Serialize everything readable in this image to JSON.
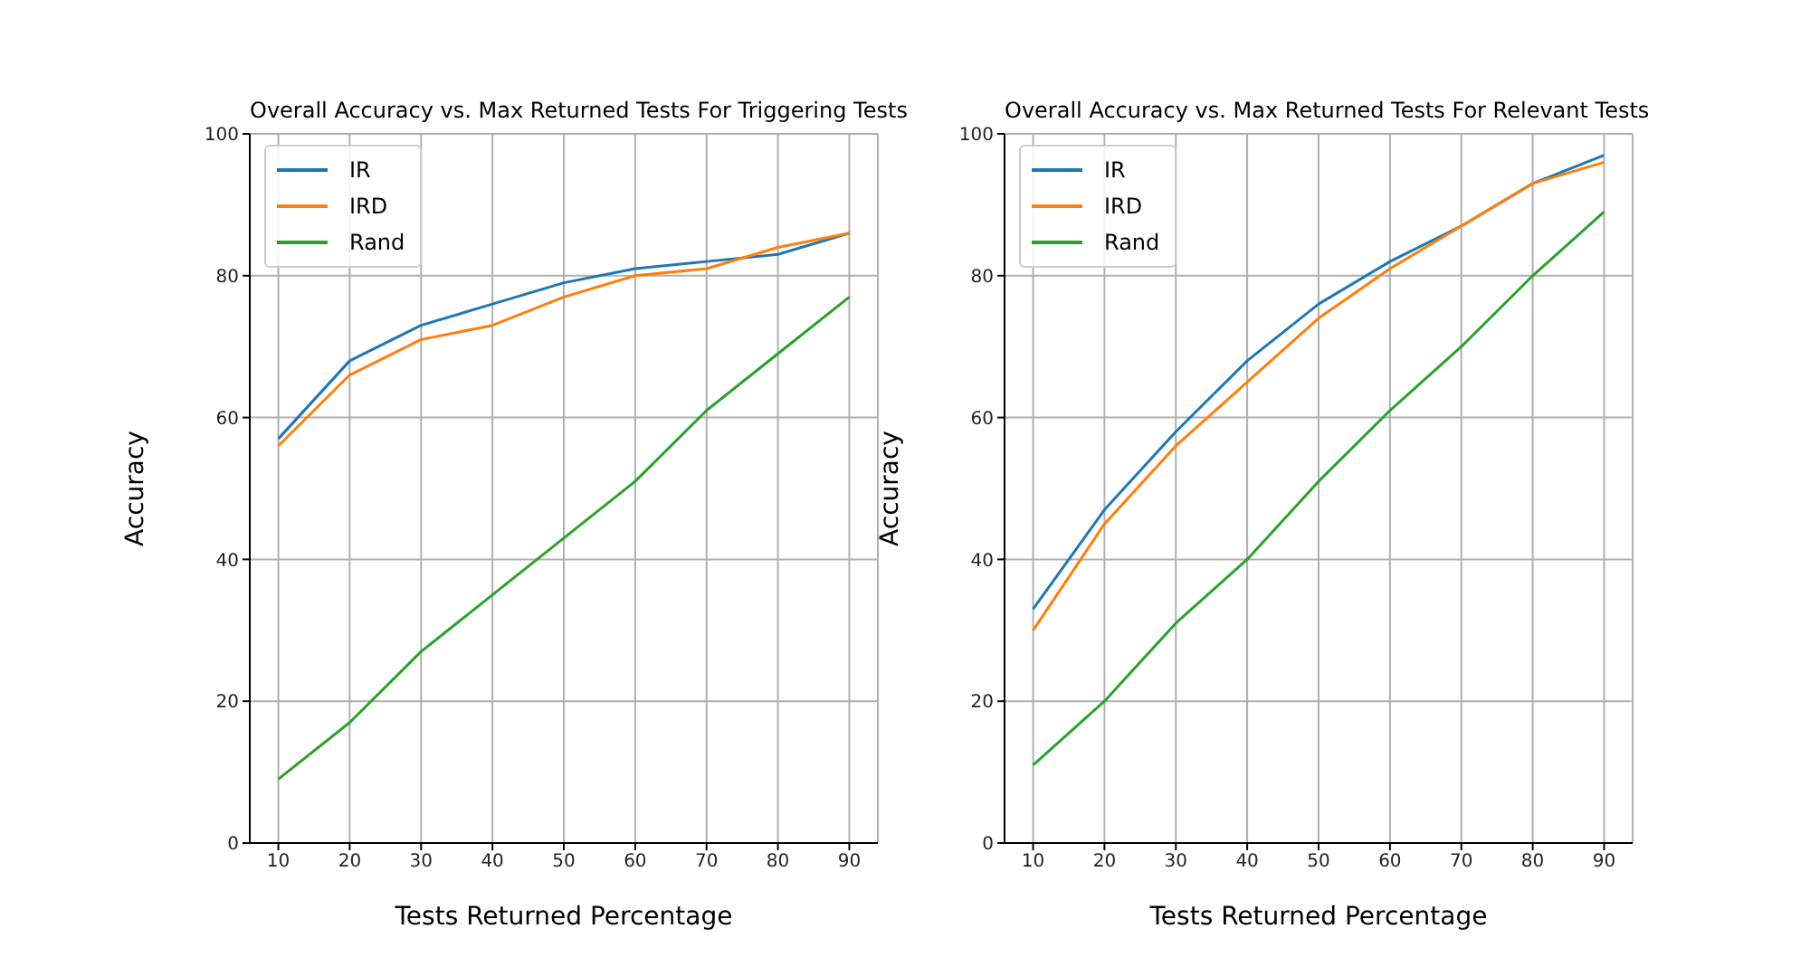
{
  "chart_data": [
    {
      "type": "line",
      "title": "Overall Accuracy vs. Max Returned Tests For Triggering Tests",
      "xlabel": "Tests Returned Percentage",
      "ylabel": "Accuracy",
      "x": [
        10,
        20,
        30,
        40,
        50,
        60,
        70,
        80,
        90
      ],
      "series": [
        {
          "name": "IR",
          "color": "#1f77b4",
          "values": [
            57,
            68,
            73,
            76,
            79,
            81,
            82,
            83,
            86
          ]
        },
        {
          "name": "IRD",
          "color": "#ff7f0e",
          "values": [
            56,
            66,
            71,
            73,
            77,
            80,
            81,
            84,
            86
          ]
        },
        {
          "name": "Rand",
          "color": "#2ca02c",
          "values": [
            9,
            17,
            27,
            35,
            43,
            51,
            61,
            69,
            77
          ]
        }
      ],
      "xlim": [
        6,
        94
      ],
      "xticks": [
        10,
        20,
        30,
        40,
        50,
        60,
        70,
        80,
        90
      ],
      "ylim": [
        0,
        100
      ],
      "yticks": [
        0,
        20,
        40,
        60,
        80,
        100
      ],
      "grid": true,
      "legend": "top left"
    },
    {
      "type": "line",
      "title": "Overall Accuracy vs. Max Returned Tests For Relevant Tests",
      "xlabel": "Tests Returned Percentage",
      "ylabel": "Accuracy",
      "x": [
        10,
        20,
        30,
        40,
        50,
        60,
        70,
        80,
        90
      ],
      "series": [
        {
          "name": "IR",
          "color": "#1f77b4",
          "values": [
            33,
            47,
            58,
            68,
            76,
            82,
            87,
            93,
            97
          ]
        },
        {
          "name": "IRD",
          "color": "#ff7f0e",
          "values": [
            30,
            45,
            56,
            65,
            74,
            81,
            87,
            93,
            96
          ]
        },
        {
          "name": "Rand",
          "color": "#2ca02c",
          "values": [
            11,
            20,
            31,
            40,
            51,
            61,
            70,
            80,
            89
          ]
        }
      ],
      "xlim": [
        6,
        94
      ],
      "xticks": [
        10,
        20,
        30,
        40,
        50,
        60,
        70,
        80,
        90
      ],
      "ylim": [
        0,
        100
      ],
      "yticks": [
        0,
        20,
        40,
        60,
        80,
        100
      ],
      "grid": true,
      "legend": "top left"
    }
  ]
}
